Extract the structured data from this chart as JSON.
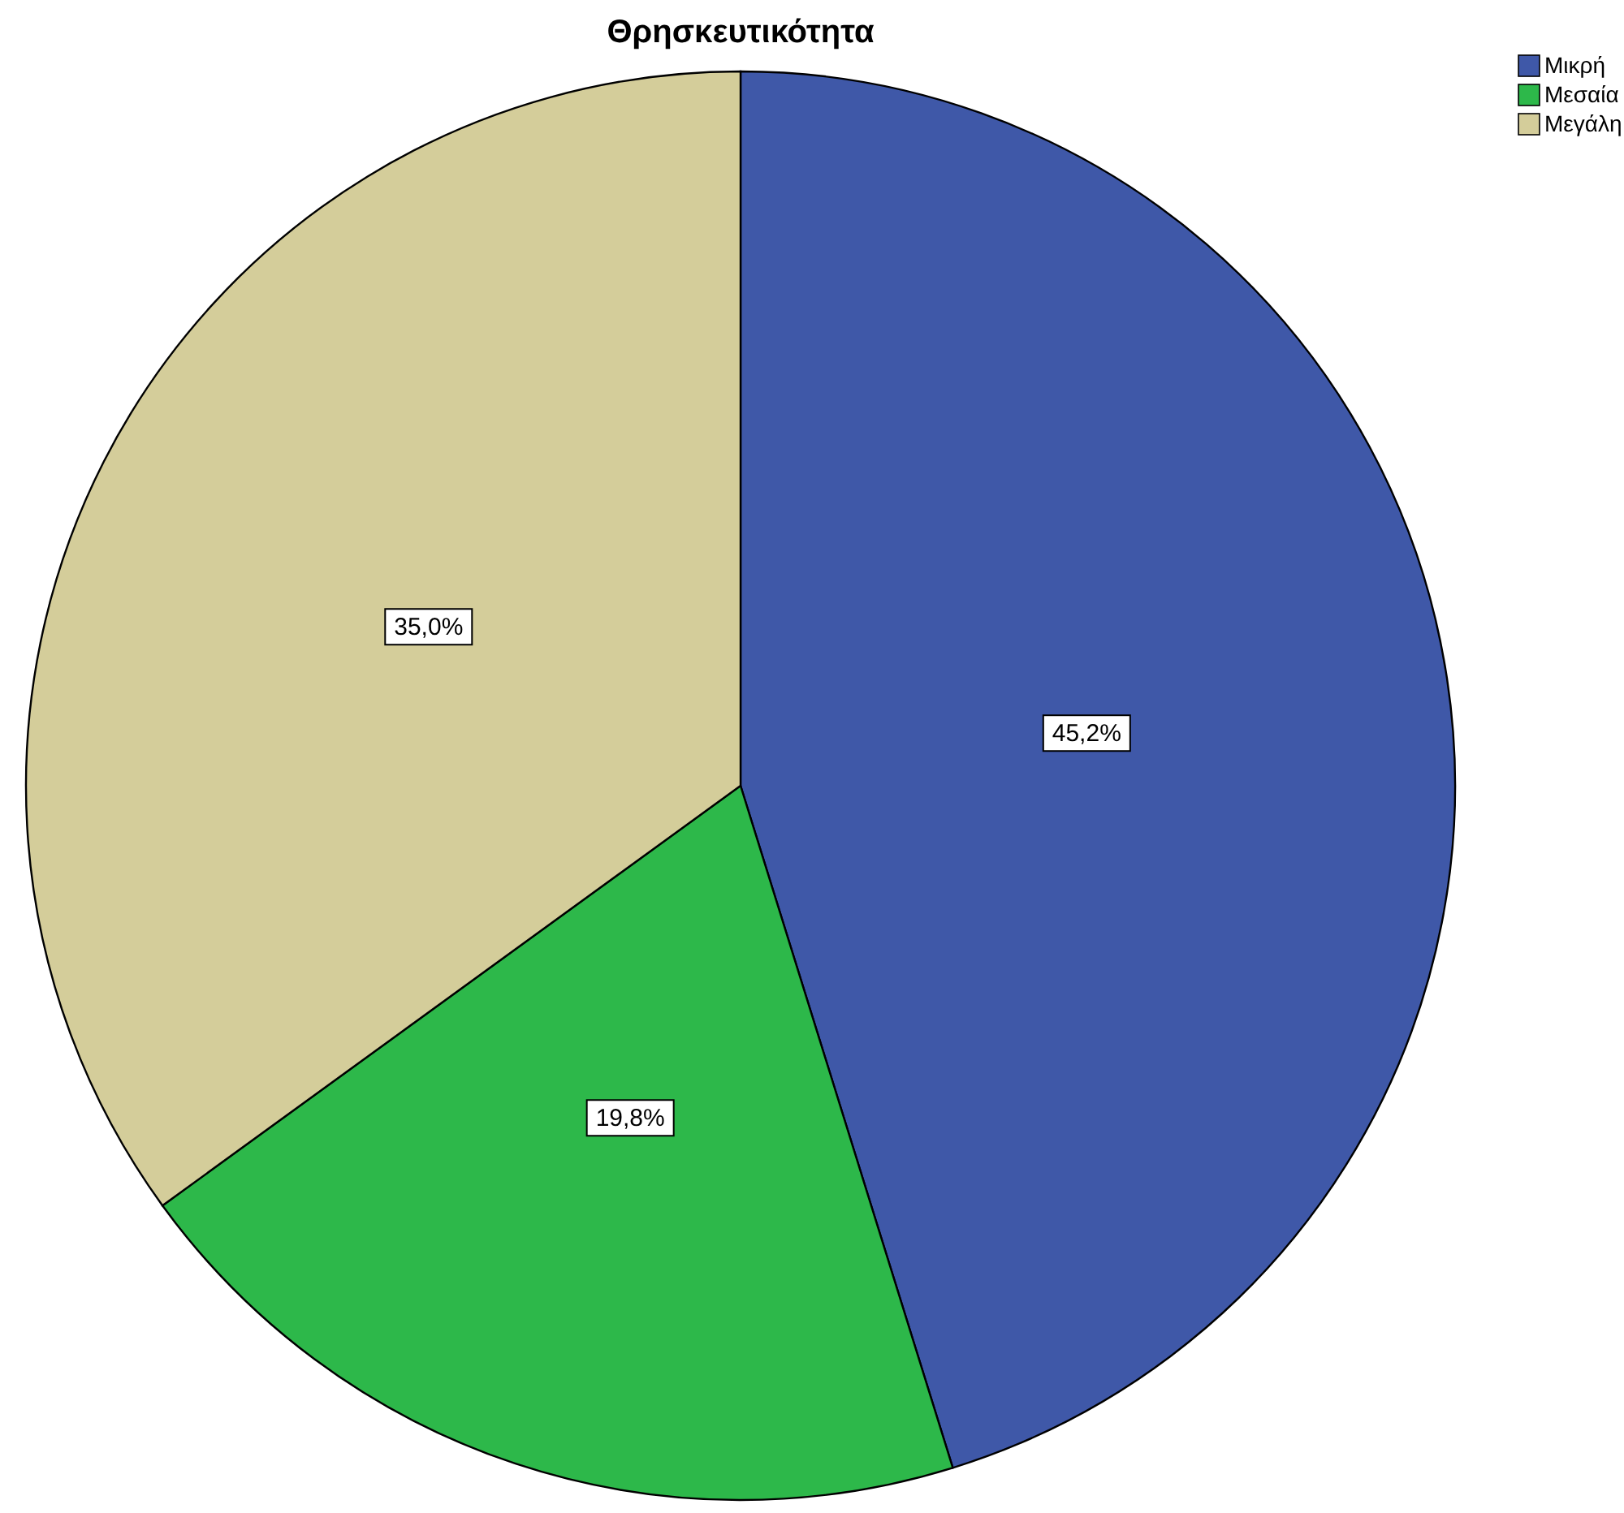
{
  "chart_data": {
    "type": "pie",
    "title": "Θρησκευτικότητα",
    "categories": [
      "Μικρή",
      "Μεσαία",
      "Μεγάλη"
    ],
    "values": [
      45.2,
      19.8,
      35.0
    ],
    "colors": [
      "#3f58a8",
      "#2db84a",
      "#d4cd9a"
    ],
    "value_labels": [
      "45,2%",
      "19,8%",
      "35,0%"
    ],
    "legend": "top right"
  }
}
